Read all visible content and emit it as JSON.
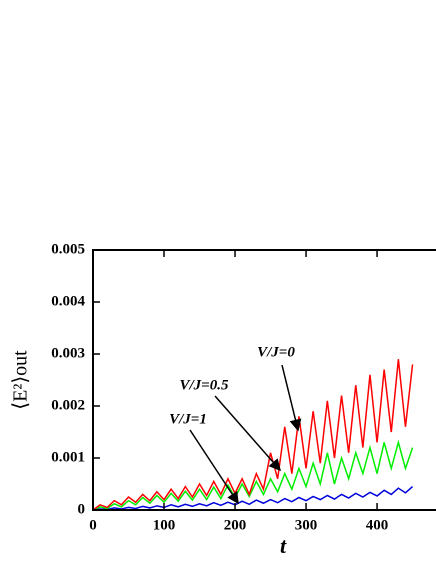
{
  "chart_data": {
    "type": "line",
    "xlabel": "t",
    "ylabel": "⟨E²⟩out",
    "x": [
      0,
      10,
      20,
      30,
      40,
      50,
      60,
      70,
      80,
      90,
      100,
      110,
      120,
      130,
      140,
      150,
      160,
      170,
      180,
      190,
      200,
      210,
      220,
      230,
      240,
      250,
      260,
      270,
      280,
      290,
      300,
      310,
      320,
      330,
      340,
      350,
      360,
      370,
      380,
      390,
      400,
      410,
      420,
      430,
      440,
      450
    ],
    "series": [
      {
        "name": "V/J=0",
        "color": "#ff0000",
        "values": [
          0,
          0.0001,
          5e-05,
          0.00018,
          0.0001,
          0.00025,
          0.00015,
          0.0003,
          0.00018,
          0.00035,
          0.0002,
          0.0004,
          0.00022,
          0.00045,
          0.00025,
          0.0005,
          0.00028,
          0.00055,
          0.0003,
          0.0006,
          0.00032,
          0.0006,
          0.0003,
          0.0007,
          0.0004,
          0.0011,
          0.0006,
          0.0016,
          0.0007,
          0.0018,
          0.0008,
          0.0019,
          0.0009,
          0.0021,
          0.001,
          0.0022,
          0.0011,
          0.0024,
          0.0012,
          0.0026,
          0.0013,
          0.0027,
          0.0015,
          0.0029,
          0.0016,
          0.0028
        ]
      },
      {
        "name": "V/J=0.5",
        "color": "#00ee00",
        "values": [
          0,
          6e-05,
          3e-05,
          0.00012,
          6e-05,
          0.00018,
          0.0001,
          0.00024,
          0.00013,
          0.00028,
          0.00015,
          0.00032,
          0.00017,
          0.00036,
          0.00019,
          0.0004,
          0.0002,
          0.00044,
          0.00022,
          0.00048,
          0.00024,
          0.0005,
          0.00026,
          0.00055,
          0.0003,
          0.0006,
          0.00035,
          0.0007,
          0.0004,
          0.0008,
          0.00045,
          0.0009,
          0.0005,
          0.0011,
          0.0005,
          0.001,
          0.0006,
          0.0011,
          0.0007,
          0.0012,
          0.0007,
          0.0013,
          0.0008,
          0.0013,
          0.0008,
          0.0012
        ]
      },
      {
        "name": "V/J=1",
        "color": "#0000dd",
        "values": [
          0,
          2e-05,
          1e-05,
          4e-05,
          2e-05,
          5e-05,
          3e-05,
          7e-05,
          4e-05,
          8e-05,
          5e-05,
          0.0001,
          6e-05,
          0.00011,
          7e-05,
          0.00012,
          8e-05,
          0.00014,
          9e-05,
          0.00015,
          0.0001,
          0.00017,
          0.00011,
          0.00019,
          0.00013,
          0.0002,
          0.00014,
          0.00022,
          0.00016,
          0.00024,
          0.00018,
          0.00026,
          0.0002,
          0.00028,
          0.00021,
          0.0003,
          0.00023,
          0.00032,
          0.00025,
          0.00034,
          0.00027,
          0.00038,
          0.0003,
          0.00042,
          0.00033,
          0.00045
        ]
      }
    ],
    "xlim": [
      0,
      483
    ],
    "ylim": [
      0,
      0.005
    ],
    "xticks": [
      0,
      100,
      200,
      300,
      400
    ],
    "yticks": [
      0,
      0.001,
      0.002,
      0.003,
      0.004,
      0.005
    ]
  }
}
